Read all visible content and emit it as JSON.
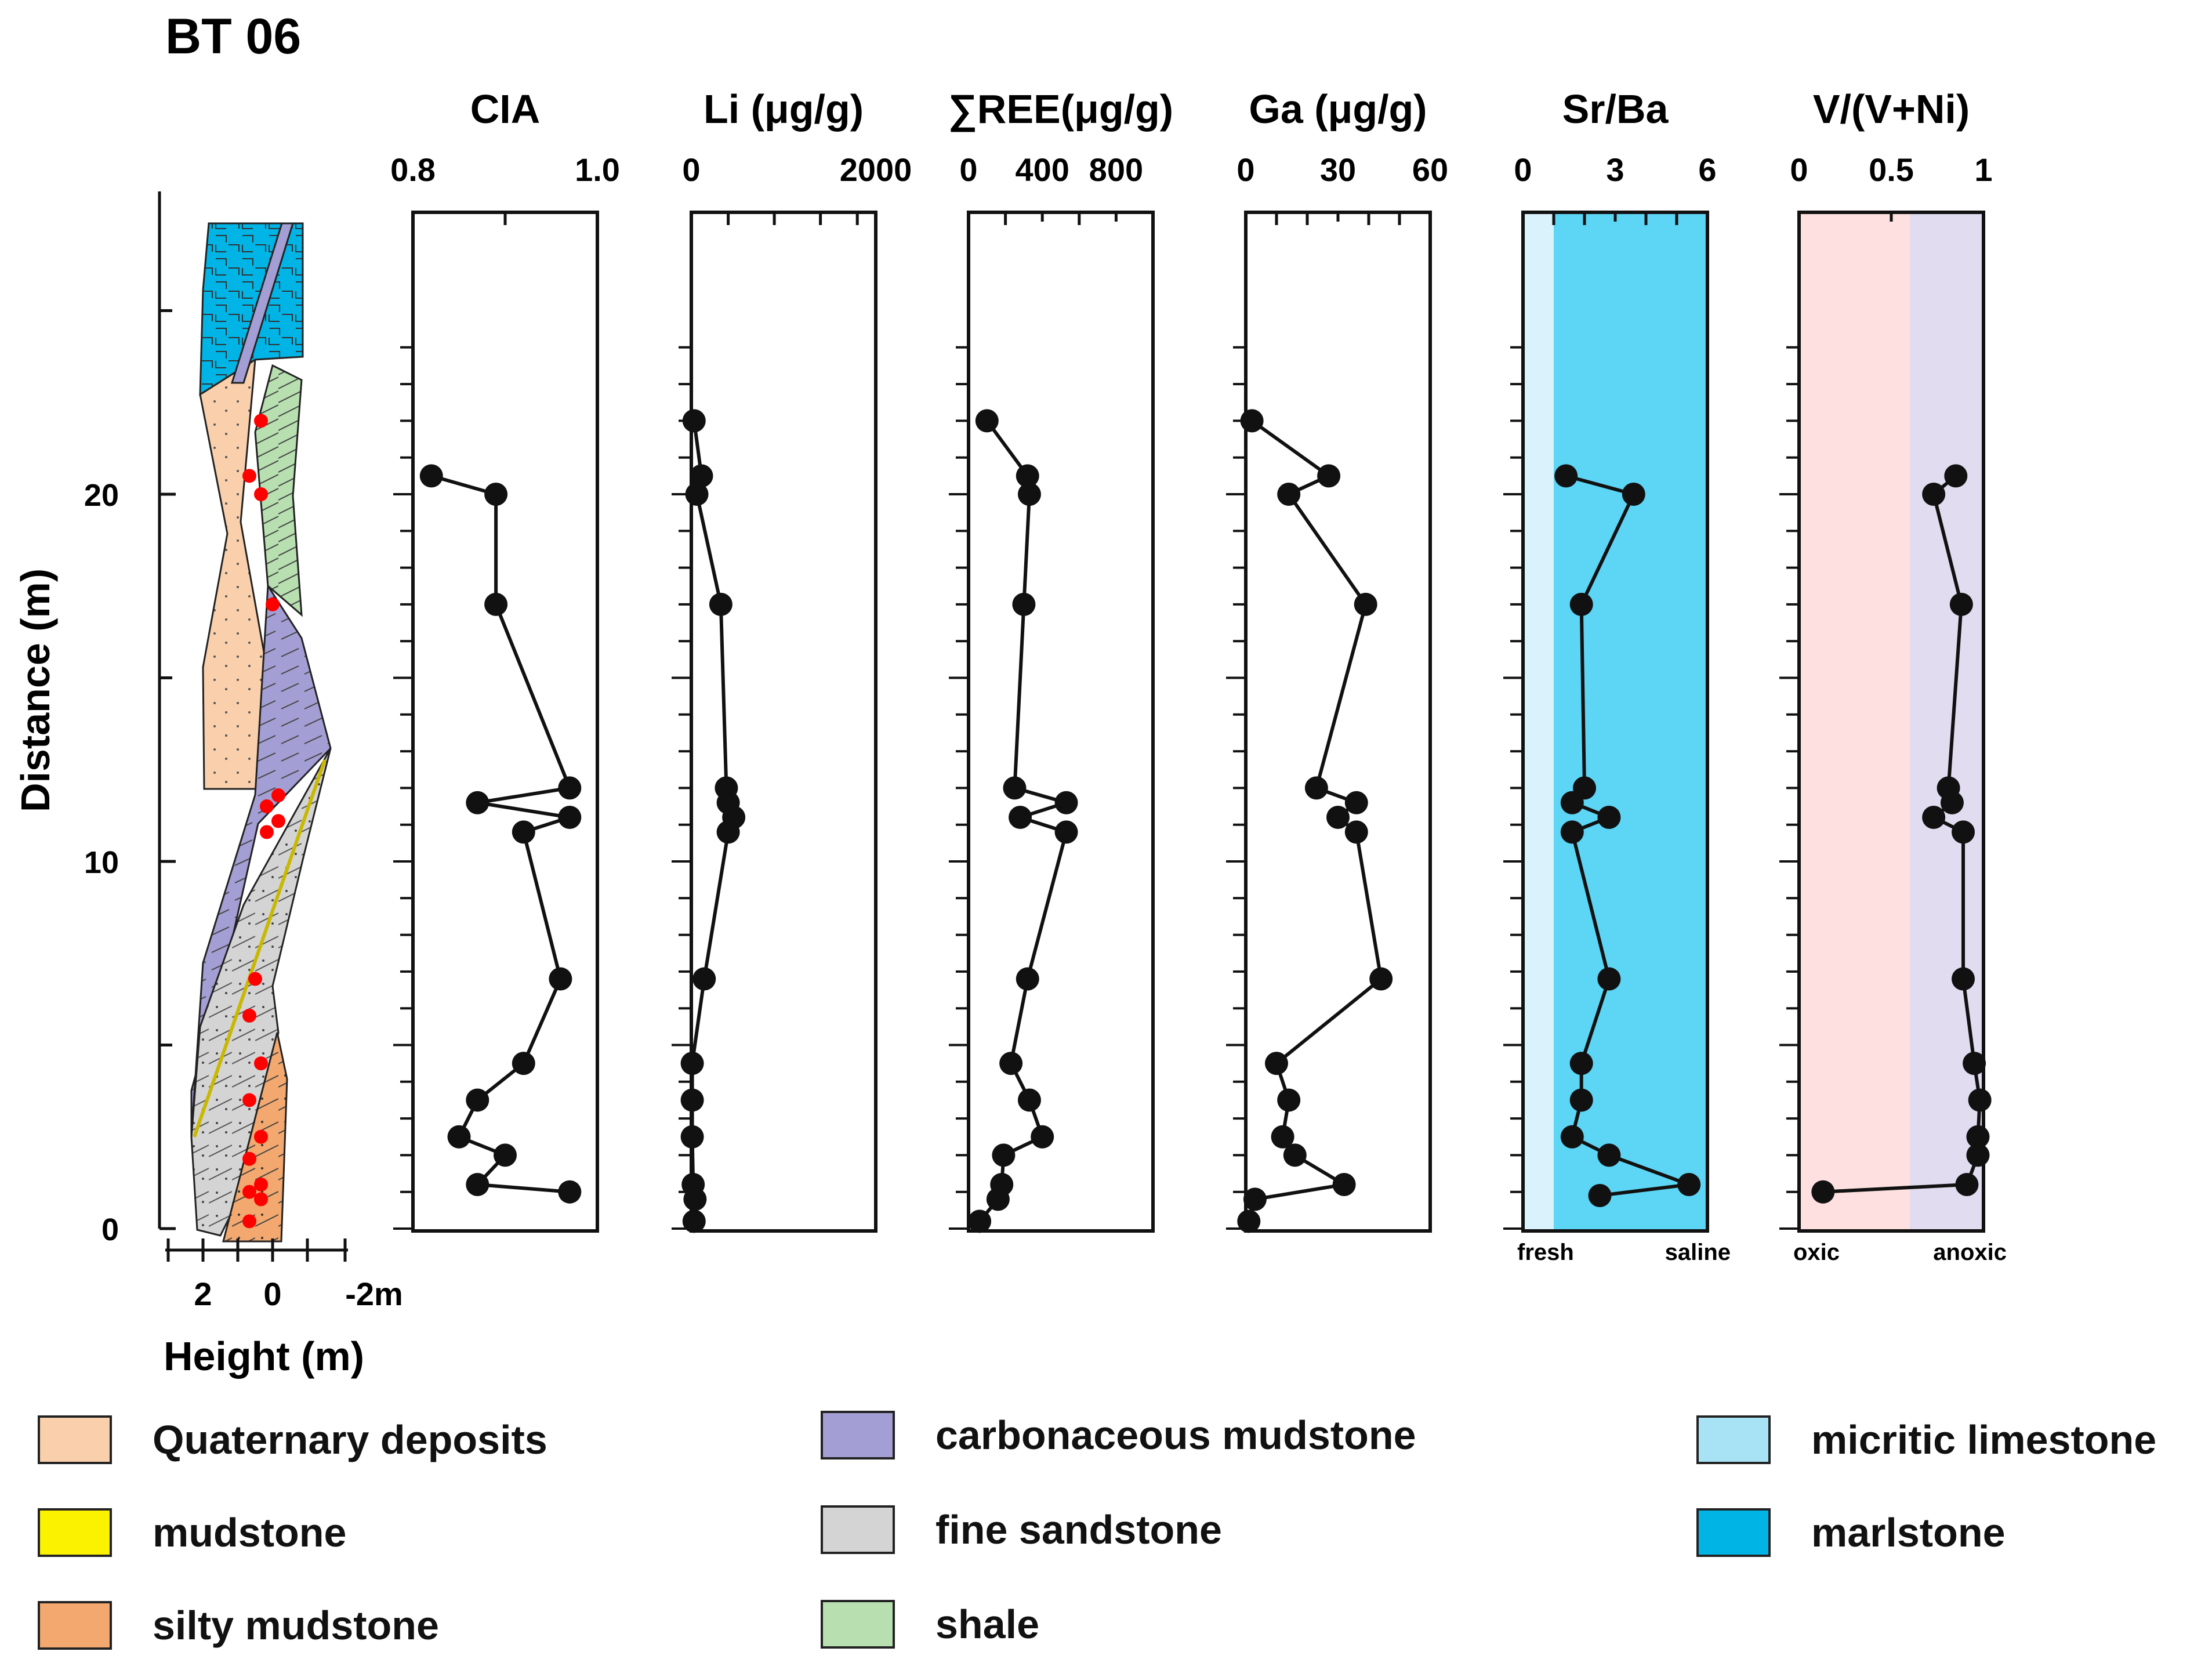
{
  "figure": {
    "section_title": "BT 06",
    "distance_label": "Distance (m)",
    "height_label": "Height (m)",
    "height_ticks": [
      "2",
      "0",
      "-2m"
    ],
    "colors": {
      "quaternary": "#f9cfac",
      "mudstone": "#fbf200",
      "silty_mudstone": "#f2a86e",
      "carbonaceous": "#a39ed3",
      "fine_sandstone": "#d4d4d4",
      "shale": "#b7dfb0",
      "micritic": "#a7e3f5",
      "marlstone": "#00b4e6",
      "sample_dot": "#ff0000",
      "fresh_zone": "#d9f2fc",
      "saline_zone": "#5dd5f5",
      "oxic_zone": "#fde0df",
      "anoxic_zone": "#e1dcef"
    }
  },
  "chart_data": [
    {
      "type": "line",
      "title": "CIA",
      "xlim": [
        0.8,
        1.0
      ],
      "tick_values": [
        0.8,
        1.0
      ],
      "tick_labels": [
        "0.8",
        "1.0"
      ],
      "minor_ticks": [
        0.9
      ],
      "points": [
        [
          0.97,
          1.0
        ],
        [
          0.87,
          1.2
        ],
        [
          0.9,
          2.0
        ],
        [
          0.85,
          2.5
        ],
        [
          0.87,
          3.5
        ],
        [
          0.92,
          4.5
        ],
        [
          0.96,
          6.8
        ],
        [
          0.92,
          10.8
        ],
        [
          0.97,
          11.2
        ],
        [
          0.87,
          11.6
        ],
        [
          0.97,
          12.0
        ],
        [
          0.89,
          17.0
        ],
        [
          0.89,
          20.0
        ],
        [
          0.82,
          20.5
        ]
      ]
    },
    {
      "type": "line",
      "title": "Li (μg/g)",
      "xlim": [
        0,
        2000
      ],
      "tick_values": [
        0,
        2000
      ],
      "tick_labels": [
        "0",
        "2000"
      ],
      "minor_ticks": [
        400,
        900,
        1400,
        1800
      ],
      "points": [
        [
          30,
          0.2
        ],
        [
          40,
          0.8
        ],
        [
          20,
          1.2
        ],
        [
          10,
          2.5
        ],
        [
          10,
          3.5
        ],
        [
          10,
          4.5
        ],
        [
          140,
          6.8
        ],
        [
          400,
          10.8
        ],
        [
          460,
          11.2
        ],
        [
          400,
          11.6
        ],
        [
          380,
          12.0
        ],
        [
          320,
          17.0
        ],
        [
          60,
          20.0
        ],
        [
          110,
          20.5
        ],
        [
          30,
          22.0
        ]
      ]
    },
    {
      "type": "line",
      "title": "∑REE(μg/g)",
      "xlim": [
        0,
        1000
      ],
      "tick_values": [
        0,
        400,
        800
      ],
      "tick_labels": [
        "0",
        "400",
        "800"
      ],
      "minor_ticks": [
        200,
        600
      ],
      "points": [
        [
          60,
          0.2
        ],
        [
          160,
          0.8
        ],
        [
          180,
          1.2
        ],
        [
          190,
          2.0
        ],
        [
          400,
          2.5
        ],
        [
          330,
          3.5
        ],
        [
          230,
          4.5
        ],
        [
          320,
          6.8
        ],
        [
          530,
          10.8
        ],
        [
          280,
          11.2
        ],
        [
          530,
          11.6
        ],
        [
          250,
          12.0
        ],
        [
          300,
          17.0
        ],
        [
          330,
          20.0
        ],
        [
          320,
          20.5
        ],
        [
          100,
          22.0
        ]
      ]
    },
    {
      "type": "line",
      "title": "Ga (μg/g)",
      "xlim": [
        0,
        60
      ],
      "tick_values": [
        0,
        30,
        60
      ],
      "tick_labels": [
        "0",
        "30",
        "60"
      ],
      "minor_ticks": [
        10,
        20,
        40,
        50
      ],
      "points": [
        [
          1,
          0.2
        ],
        [
          3,
          0.8
        ],
        [
          32,
          1.2
        ],
        [
          16,
          2.0
        ],
        [
          12,
          2.5
        ],
        [
          14,
          3.5
        ],
        [
          10,
          4.5
        ],
        [
          44,
          6.8
        ],
        [
          36,
          10.8
        ],
        [
          30,
          11.2
        ],
        [
          36,
          11.6
        ],
        [
          23,
          12.0
        ],
        [
          39,
          17.0
        ],
        [
          14,
          20.0
        ],
        [
          27,
          20.5
        ],
        [
          2,
          22.0
        ]
      ]
    },
    {
      "type": "line",
      "title": "Sr/Ba",
      "xlim": [
        0,
        6
      ],
      "tick_values": [
        0,
        3,
        6
      ],
      "tick_labels": [
        "0",
        "3",
        "6"
      ],
      "minor_ticks": [
        1,
        2,
        4,
        5
      ],
      "zones": [
        [
          0,
          1,
          "fresh_zone"
        ],
        [
          1,
          6,
          "saline_zone"
        ]
      ],
      "zone_labels": [
        "fresh",
        "saline"
      ],
      "points": [
        [
          2.5,
          0.9
        ],
        [
          5.4,
          1.2
        ],
        [
          2.8,
          2.0
        ],
        [
          1.6,
          2.5
        ],
        [
          1.9,
          3.5
        ],
        [
          1.9,
          4.5
        ],
        [
          2.8,
          6.8
        ],
        [
          1.6,
          10.8
        ],
        [
          2.8,
          11.2
        ],
        [
          1.6,
          11.6
        ],
        [
          2.0,
          12.0
        ],
        [
          1.9,
          17.0
        ],
        [
          3.6,
          20.0
        ],
        [
          1.4,
          20.5
        ]
      ]
    },
    {
      "type": "line",
      "title": "V/(V+Ni)",
      "xlim": [
        0,
        1
      ],
      "tick_values": [
        0,
        0.5,
        1
      ],
      "tick_labels": [
        "0",
        "0.5",
        "1"
      ],
      "minor_ticks": [],
      "zones": [
        [
          0,
          0.6,
          "oxic_zone"
        ],
        [
          0.6,
          1,
          "anoxic_zone"
        ]
      ],
      "zone_labels": [
        "oxic",
        "anoxic"
      ],
      "points": [
        [
          0.13,
          1.0
        ],
        [
          0.91,
          1.2
        ],
        [
          0.97,
          2.0
        ],
        [
          0.97,
          2.5
        ],
        [
          0.98,
          3.5
        ],
        [
          0.95,
          4.5
        ],
        [
          0.89,
          6.8
        ],
        [
          0.89,
          10.8
        ],
        [
          0.73,
          11.2
        ],
        [
          0.83,
          11.6
        ],
        [
          0.81,
          12.0
        ],
        [
          0.88,
          17.0
        ],
        [
          0.73,
          20.0
        ],
        [
          0.85,
          20.5
        ]
      ]
    }
  ],
  "distance_axis": {
    "ylim": [
      0,
      27
    ],
    "tick_values": [
      0,
      10,
      20
    ],
    "tick_labels": [
      "0",
      "10",
      "20"
    ]
  },
  "sample_depths": [
    0.2,
    0.8,
    1.0,
    1.2,
    1.9,
    2.5,
    3.5,
    4.5,
    5.8,
    6.8,
    10.8,
    11.1,
    11.5,
    11.8,
    17.0,
    20.0,
    20.5,
    22.0
  ],
  "legend": [
    {
      "label": "Quaternary deposits",
      "pattern": "quaternary"
    },
    {
      "label": "mudstone",
      "pattern": "mudstone"
    },
    {
      "label": "silty mudstone",
      "pattern": "silty_mudstone"
    },
    {
      "label": "carbonaceous mudstone",
      "pattern": "carbonaceous"
    },
    {
      "label": "fine sandstone",
      "pattern": "fine_sandstone"
    },
    {
      "label": "shale",
      "pattern": "shale"
    },
    {
      "label": "micritic limestone",
      "pattern": "micritic"
    },
    {
      "label": "marlstone",
      "pattern": "marlstone"
    }
  ]
}
